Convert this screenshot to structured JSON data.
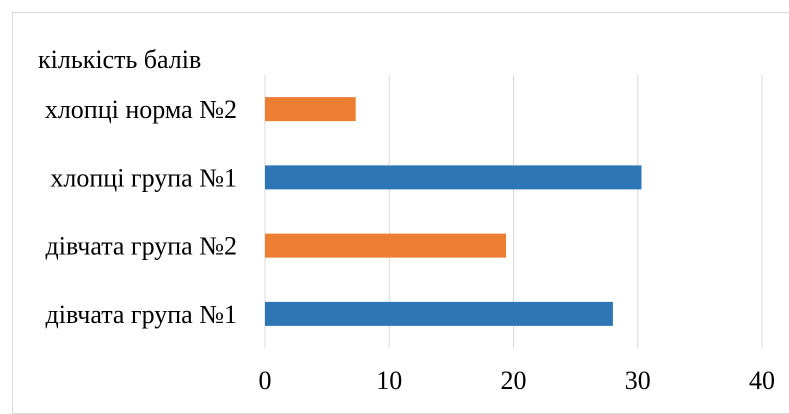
{
  "chart_data": {
    "type": "bar",
    "orientation": "horizontal",
    "title": "кількість балів",
    "categories": [
      "дівчата група №1",
      "дівчата група №2",
      "хлопці група №1",
      "хлопці норма №2"
    ],
    "values": [
      28,
      19.4,
      30.3,
      7.3
    ],
    "bar_colors": [
      "#2E75B6",
      "#ED7D31",
      "#2E75B6",
      "#ED7D31"
    ],
    "xlim": [
      0,
      40
    ],
    "xticks": [
      "0",
      "10",
      "20",
      "30",
      "40"
    ],
    "grid": true,
    "gridline_color": "#d9d9d9"
  }
}
